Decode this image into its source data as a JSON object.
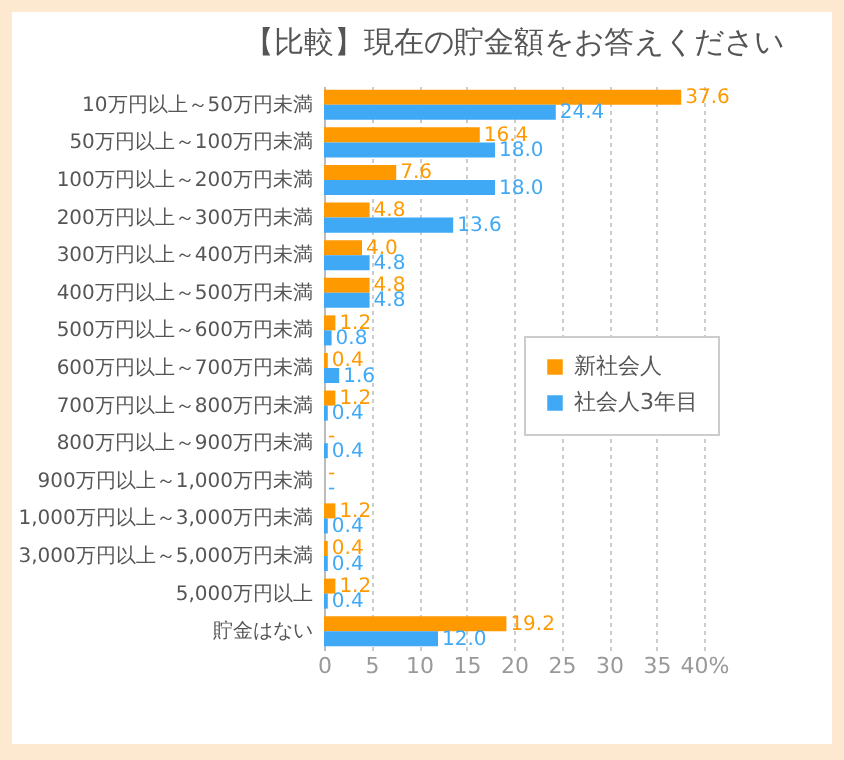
{
  "chart_data": {
    "type": "bar",
    "orientation": "horizontal",
    "title": "【比較】現在の貯金額をお答えください",
    "categories": [
      "10万円以上～50万円未満",
      "50万円以上～100万円未満",
      "100万円以上～200万円未満",
      "200万円以上～300万円未満",
      "300万円以上～400万円未満",
      "400万円以上～500万円未満",
      "500万円以上～600万円未満",
      "600万円以上～700万円未満",
      "700万円以上～800万円未満",
      "800万円以上～900万円未満",
      "900万円以上～1,000万円未満",
      "1,000万円以上～3,000万円未満",
      "3,000万円以上～5,000万円未満",
      "5,000万円以上",
      "貯金はない"
    ],
    "series": [
      {
        "name": "新社会人",
        "color": "#ff9900",
        "values": [
          37.6,
          16.4,
          7.6,
          4.8,
          4.0,
          4.8,
          1.2,
          0.4,
          1.2,
          0,
          0,
          1.2,
          0.4,
          1.2,
          19.2
        ],
        "value_labels": [
          "37.6",
          "16.4",
          "7.6",
          "4.8",
          "4.0",
          "4.8",
          "1.2",
          "0.4",
          "1.2",
          "-",
          "-",
          "1.2",
          "0.4",
          "1.2",
          "19.2"
        ]
      },
      {
        "name": "社会人3年目",
        "color": "#3fa9f5",
        "values": [
          24.4,
          18.0,
          18.0,
          13.6,
          4.8,
          4.8,
          0.8,
          1.6,
          0.4,
          0.4,
          0,
          0.4,
          0.4,
          0.4,
          12.0
        ],
        "value_labels": [
          "24.4",
          "18.0",
          "18.0",
          "13.6",
          "4.8",
          "4.8",
          "0.8",
          "1.6",
          "0.4",
          "0.4",
          "-",
          "0.4",
          "0.4",
          "0.4",
          "12.0"
        ]
      }
    ],
    "xlim": [
      0,
      40
    ],
    "xticks": [
      0,
      5,
      10,
      15,
      20,
      25,
      30,
      35,
      {
        "value": 40,
        "label": "40%"
      }
    ],
    "grid": "x",
    "legend": "right"
  }
}
